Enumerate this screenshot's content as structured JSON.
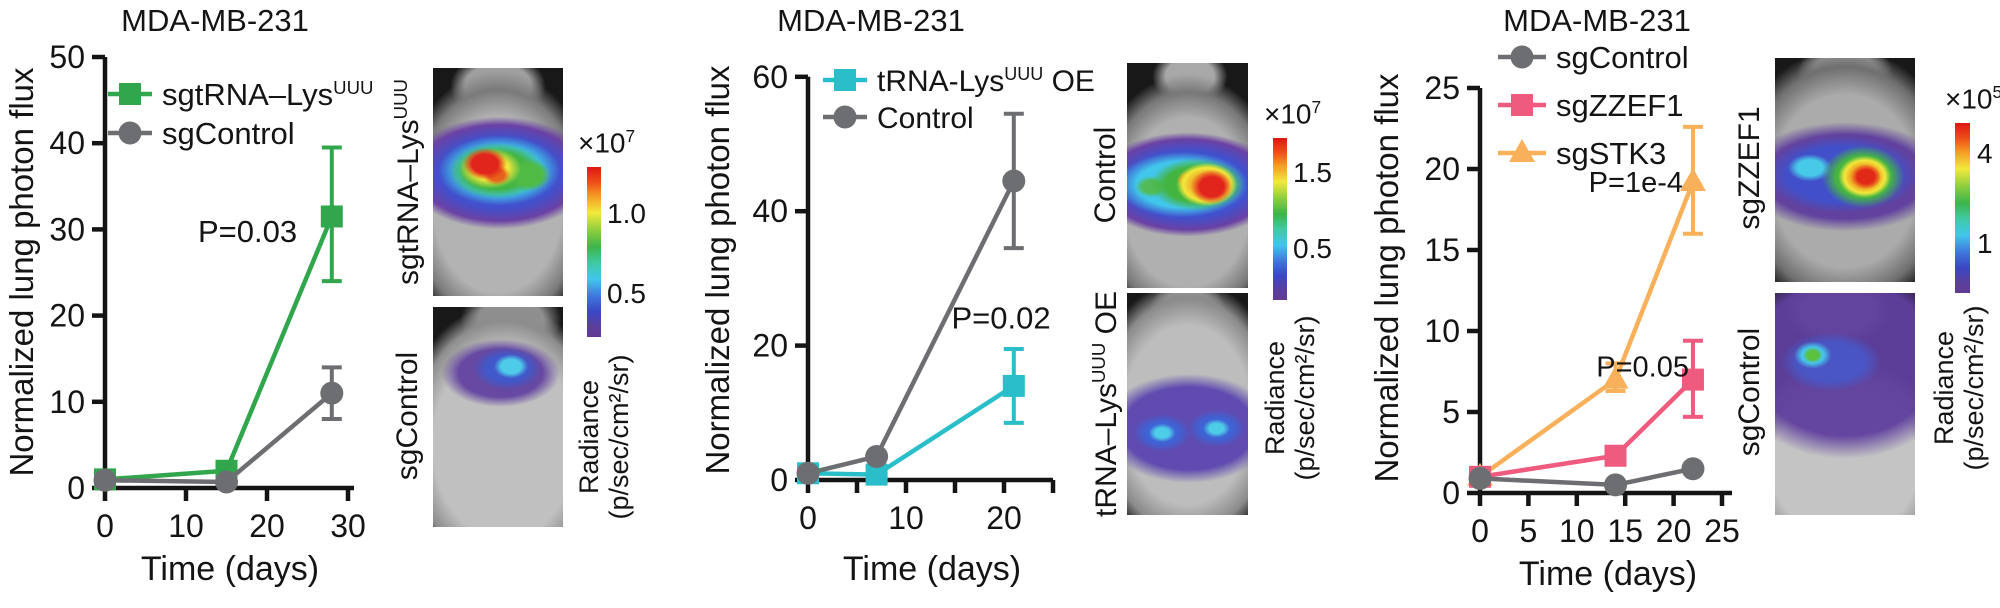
{
  "figure": {
    "background": "#ffffff",
    "text_color": "#141414"
  },
  "panels": [
    {
      "images": [
        {
          "label": "sgtRNA–Lys^{UUU}"
        },
        {
          "label": "sgControl"
        }
      ],
      "colorbar": {
        "exponent": "×10^{7}",
        "tick_top": "1.0",
        "tick_bottom": "0.5",
        "label_line1": "Radiance",
        "label_line2": "(p/sec/cm²/sr)"
      }
    },
    {
      "images": [
        {
          "label": "Control"
        },
        {
          "label": "tRNA–Lys^{UUU} OE"
        }
      ],
      "colorbar": {
        "exponent": "×10^{7}",
        "tick_top": "1.5",
        "tick_bottom": "0.5",
        "label_line1": "Radiance",
        "label_line2": "(p/sec/cm²/sr)"
      }
    },
    {
      "images": [
        {
          "label": "sgZZEF1"
        },
        {
          "label": "sgControl"
        }
      ],
      "colorbar": {
        "exponent": "×10^{5}",
        "tick_top": "4",
        "tick_bottom": "1",
        "label_line1": "Radiance",
        "label_line2": "(p/sec/cm²/sr)"
      }
    }
  ],
  "chart_data": [
    {
      "type": "line",
      "title": "MDA-MB-231",
      "xlabel": "Time (days)",
      "ylabel": "Normalized lung photon flux",
      "xlim": [
        0,
        30
      ],
      "ylim": [
        0,
        50
      ],
      "xticks": [
        0,
        10,
        20,
        30
      ],
      "xticks_minor": [],
      "yticks": [
        0,
        10,
        20,
        30,
        40,
        50
      ],
      "grid": false,
      "legend_position": "top-left-inside",
      "series": [
        {
          "name": "sgtRNA–Lys^{UUU}",
          "color": "#31a64d",
          "marker": "square",
          "x": [
            0,
            15,
            28
          ],
          "y": [
            1,
            2,
            31.5
          ],
          "err": [
            null,
            null,
            {
              "lo": 24,
              "hi": 39.5
            }
          ]
        },
        {
          "name": "sgControl",
          "color": "#6d6e71",
          "marker": "circle",
          "x": [
            0,
            15,
            28
          ],
          "y": [
            0.9,
            0.7,
            11
          ],
          "err": [
            null,
            null,
            {
              "lo": 8,
              "hi": 14
            }
          ]
        }
      ],
      "annotations": [
        {
          "text": "P=0.03",
          "x": 17.6,
          "y": 29.7
        }
      ]
    },
    {
      "type": "line",
      "title": "MDA-MB-231",
      "xlabel": "Time (days)",
      "ylabel": "Normalized lung photon flux",
      "xlim": [
        0,
        25
      ],
      "ylim": [
        0,
        60
      ],
      "xticks": [
        0,
        10,
        20
      ],
      "xticks_minor": [
        5,
        15,
        25
      ],
      "yticks": [
        0,
        20,
        40,
        60
      ],
      "grid": false,
      "legend_position": "top-left-inside",
      "series": [
        {
          "name": "tRNA-Lys^{UUU} OE",
          "color": "#29bec9",
          "marker": "square",
          "x": [
            0,
            7,
            21
          ],
          "y": [
            1,
            0.8,
            14
          ],
          "err": [
            null,
            null,
            {
              "lo": 8.5,
              "hi": 19.5
            }
          ]
        },
        {
          "name": "Control",
          "color": "#6d6e71",
          "marker": "circle",
          "x": [
            0,
            7,
            21
          ],
          "y": [
            1,
            3.5,
            44.5
          ],
          "err": [
            null,
            null,
            {
              "lo": 34.5,
              "hi": 54.5
            }
          ]
        }
      ],
      "annotations": [
        {
          "text": "P=0.02",
          "x": 19.7,
          "y": 24
        }
      ]
    },
    {
      "type": "line",
      "title": "MDA-MB-231",
      "xlabel": "Time (days)",
      "ylabel": "Normalized lung photon flux",
      "xlim": [
        0,
        26
      ],
      "ylim": [
        0,
        25
      ],
      "xticks": [
        0,
        5,
        10,
        15,
        20,
        25
      ],
      "xticks_minor": [],
      "yticks": [
        0,
        5,
        10,
        15,
        20,
        25
      ],
      "grid": false,
      "legend_position": "top-left-inside",
      "series": [
        {
          "name": "sgControl",
          "color": "#6d6e71",
          "marker": "circle",
          "x": [
            0,
            14,
            22
          ],
          "y": [
            0.9,
            0.5,
            1.5
          ],
          "err": [
            null,
            null,
            null
          ]
        },
        {
          "name": "sgZZEF1",
          "color": "#ef5b7e",
          "marker": "square",
          "x": [
            0,
            14,
            22
          ],
          "y": [
            1,
            2.3,
            7
          ],
          "err": [
            null,
            null,
            {
              "lo": 4.7,
              "hi": 9.4
            }
          ]
        },
        {
          "name": "sgSTK3",
          "color": "#f9b05a",
          "marker": "triangle",
          "x": [
            0,
            14,
            22
          ],
          "y": [
            1,
            7,
            19.2
          ],
          "err": [
            null,
            {
              "lo": 6.3,
              "hi": 8.0
            },
            {
              "lo": 16,
              "hi": 22.6
            }
          ]
        }
      ],
      "annotations": [
        {
          "text": "P=1e-4",
          "x": 16.1,
          "y": 19.2
        },
        {
          "text": "P=0.05",
          "x": 16.8,
          "y": 7.8
        }
      ]
    }
  ]
}
